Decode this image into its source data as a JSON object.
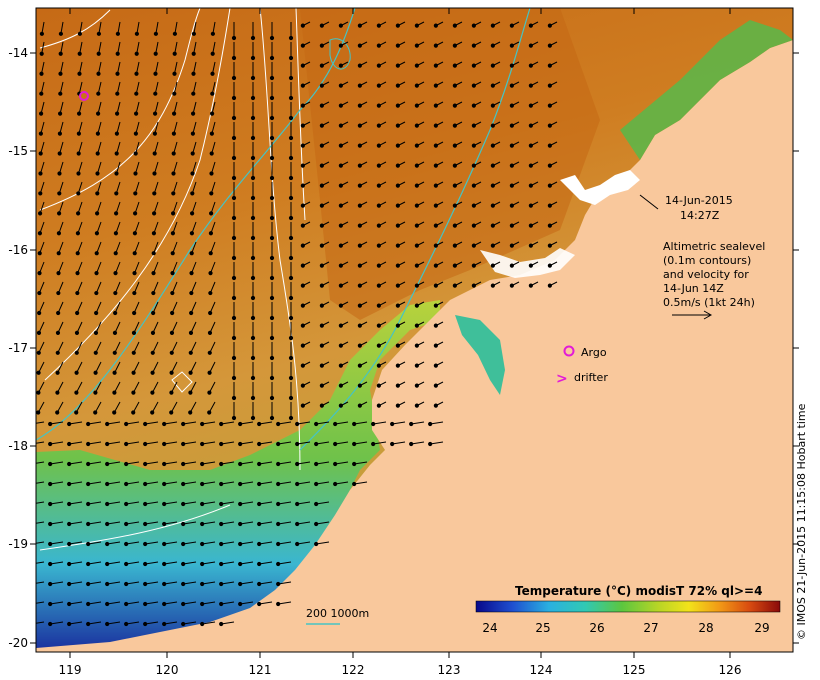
{
  "map": {
    "date_line1": "14-Jun-2015",
    "date_line2": "14:27Z",
    "legend_text": [
      "Altimetric sealevel",
      "(0.1m contours)",
      "and velocity for",
      "14-Jun 14Z",
      "0.5m/s (1kt 24h)"
    ],
    "argo_label": "Argo",
    "drifter_label": "drifter",
    "drifter_symbol": ">",
    "depth_label": "200  1000m",
    "colorbar_title": "Temperature (°C) modisT 72% ql>=4",
    "colorbar_ticks": [
      "24",
      "25",
      "26",
      "27",
      "28",
      "29"
    ],
    "x_ticks": [
      "119",
      "120",
      "121",
      "122",
      "123",
      "124",
      "125",
      "126"
    ],
    "y_ticks": [
      "-14",
      "-15",
      "-16",
      "-17",
      "-18",
      "-19",
      "-20"
    ],
    "credit": "© IMOS 21-Jun-2015 11:15:08 Hobart time",
    "colors": {
      "land": "#f9c89c",
      "warm": "#c9731a",
      "mid": "#d99a35",
      "shelf_green": "#6bc34a",
      "shelf_cyan": "#3bb9d6",
      "shelf_blue": "#1d39b7",
      "contour_cyan": "#45c4c4",
      "marker_magenta": "#e21bd7"
    }
  }
}
